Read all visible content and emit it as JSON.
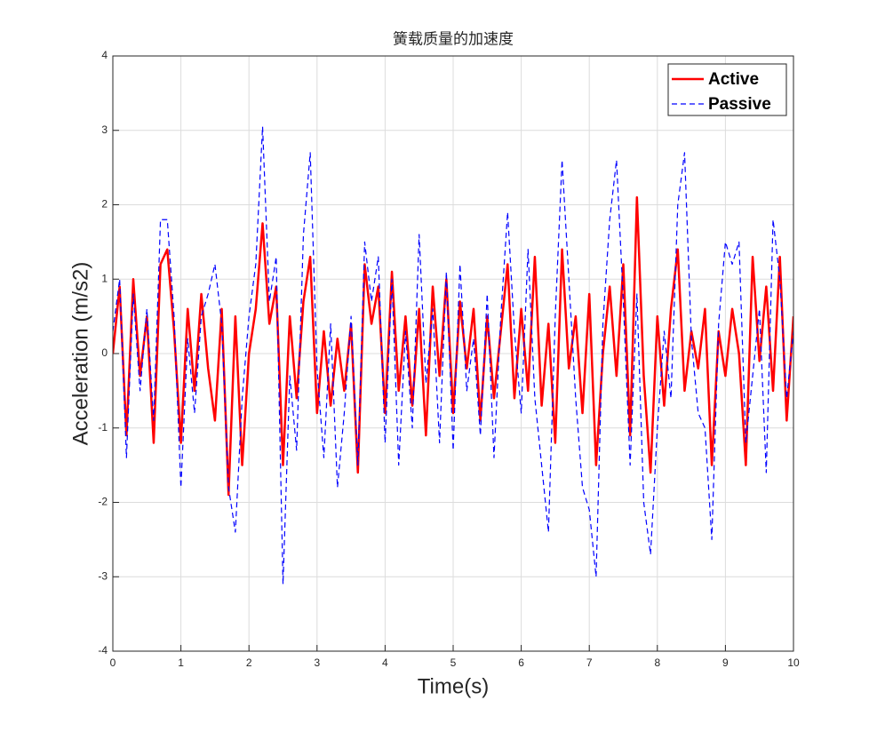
{
  "chart_data": {
    "type": "line",
    "title": "簧载质量的加速度",
    "xlabel": "Time(s)",
    "ylabel": "Acceleration (m/s2)",
    "x": [
      0,
      0.1,
      0.2,
      0.3,
      0.4,
      0.5,
      0.6,
      0.7,
      0.8,
      0.9,
      1,
      1.1,
      1.2,
      1.3,
      1.4,
      1.5,
      1.6,
      1.7,
      1.8,
      1.9,
      2,
      2.1,
      2.2,
      2.3,
      2.4,
      2.5,
      2.6,
      2.7,
      2.8,
      2.9,
      3,
      3.1,
      3.2,
      3.3,
      3.4,
      3.5,
      3.6,
      3.7,
      3.8,
      3.9,
      4,
      4.1,
      4.2,
      4.3,
      4.4,
      4.5,
      4.6,
      4.7,
      4.8,
      4.9,
      5,
      5.1,
      5.2,
      5.3,
      5.4,
      5.5,
      5.6,
      5.7,
      5.8,
      5.9,
      6,
      6.1,
      6.2,
      6.3,
      6.4,
      6.5,
      6.6,
      6.7,
      6.8,
      6.9,
      7,
      7.1,
      7.2,
      7.3,
      7.4,
      7.5,
      7.6,
      7.7,
      7.8,
      7.9,
      8,
      8.1,
      8.2,
      8.3,
      8.4,
      8.5,
      8.6,
      8.7,
      8.8,
      8.9,
      9,
      9.1,
      9.2,
      9.3,
      9.4,
      9.5,
      9.6,
      9.7,
      9.8,
      9.9,
      10
    ],
    "series": [
      {
        "name": "Active",
        "color": "#ff0000",
        "dash": "solid",
        "values": [
          0,
          0.9,
          -1.1,
          1.0,
          -0.3,
          0.5,
          -1.2,
          1.2,
          1.4,
          0.3,
          -1.2,
          0.6,
          -0.5,
          0.8,
          -0.2,
          -0.9,
          0.6,
          -1.9,
          0.5,
          -1.5,
          0.0,
          0.6,
          1.75,
          0.4,
          0.9,
          -1.5,
          0.5,
          -0.6,
          0.7,
          1.3,
          -0.8,
          0.3,
          -0.7,
          0.2,
          -0.5,
          0.4,
          -1.6,
          1.2,
          0.4,
          0.9,
          -0.8,
          1.1,
          -0.5,
          0.5,
          -0.7,
          0.6,
          -1.1,
          0.9,
          -0.3,
          1.0,
          -0.8,
          0.7,
          -0.2,
          0.6,
          -0.9,
          0.5,
          -0.6,
          0.3,
          1.2,
          -0.6,
          0.6,
          -0.5,
          1.3,
          -0.7,
          0.4,
          -1.2,
          1.4,
          -0.2,
          0.5,
          -0.8,
          0.8,
          -1.5,
          0.0,
          0.9,
          -0.3,
          1.2,
          -1.1,
          2.1,
          -0.3,
          -1.6,
          0.5,
          -0.7,
          0.6,
          1.4,
          -0.5,
          0.3,
          -0.2,
          0.6,
          -1.5,
          0.3,
          -0.3,
          0.6,
          0.0,
          -1.5,
          1.3,
          -0.1,
          0.9,
          -0.5,
          1.3,
          -0.9,
          0.5
        ]
      },
      {
        "name": "Passive",
        "color": "#0000ff",
        "dash": "dashed",
        "values": [
          0.3,
          1.0,
          -1.4,
          0.8,
          -0.5,
          0.6,
          -0.9,
          1.8,
          1.8,
          0.5,
          -1.8,
          0.2,
          -0.8,
          0.5,
          0.8,
          1.2,
          0.4,
          -1.8,
          -2.4,
          -0.6,
          0.5,
          1.2,
          3.05,
          0.7,
          1.3,
          -3.1,
          -0.3,
          -1.3,
          1.6,
          2.7,
          -0.2,
          -1.4,
          0.4,
          -1.8,
          -0.8,
          0.5,
          -1.5,
          1.5,
          0.7,
          1.3,
          -1.2,
          1.0,
          -1.5,
          0.3,
          -1.0,
          1.6,
          -0.4,
          0.6,
          -1.2,
          1.1,
          -1.3,
          1.2,
          -0.5,
          0.2,
          -1.1,
          0.8,
          -1.4,
          0.5,
          1.9,
          0.3,
          -0.8,
          1.4,
          -0.6,
          -1.5,
          -2.4,
          0.5,
          2.6,
          1.0,
          -0.6,
          -1.8,
          -2.1,
          -3.0,
          0.4,
          1.8,
          2.6,
          0.7,
          -1.5,
          0.8,
          -2.0,
          -2.7,
          -1.0,
          0.3,
          -0.6,
          2.0,
          2.7,
          0.2,
          -0.8,
          -1.0,
          -2.5,
          0.4,
          1.5,
          1.2,
          1.5,
          -1.2,
          -0.3,
          0.6,
          -1.6,
          1.8,
          1.0,
          -0.6,
          0.3
        ]
      }
    ],
    "xlim": [
      0,
      10
    ],
    "xticks": [
      0,
      1,
      2,
      3,
      4,
      5,
      6,
      7,
      8,
      9,
      10
    ],
    "ylim": [
      -4,
      4
    ],
    "yticks": [
      -4,
      -3,
      -2,
      -1,
      0,
      1,
      2,
      3,
      4
    ],
    "grid": true,
    "legend": "northeast"
  }
}
